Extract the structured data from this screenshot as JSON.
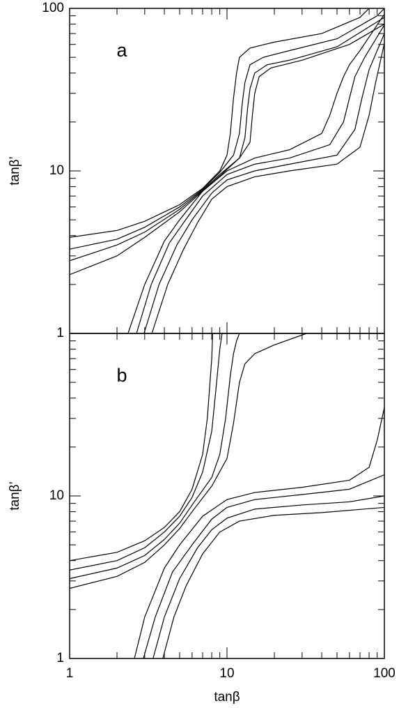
{
  "chart_data": [
    {
      "type": "line",
      "panel_label": "a",
      "y_label": "tanβ’",
      "log_x": true,
      "log_y": true,
      "xlim": [
        1,
        100
      ],
      "ylim": [
        1,
        100
      ],
      "yticks": [
        1,
        10,
        100
      ],
      "series": [
        {
          "color": "#000000",
          "x": [
            1,
            2,
            3,
            5,
            7,
            9,
            10,
            10.5,
            11,
            11.5,
            12,
            14,
            20,
            40,
            70,
            80
          ],
          "values": [
            3.9,
            4.3,
            4.9,
            6.2,
            7.8,
            10,
            12.5,
            17,
            28,
            40,
            50,
            57,
            62,
            70,
            88,
            100
          ]
        },
        {
          "color": "#000000",
          "x": [
            1,
            2,
            3,
            5,
            7,
            9,
            11,
            12,
            12.5,
            13,
            14,
            17,
            25,
            50,
            90,
            100
          ],
          "values": [
            3.3,
            3.8,
            4.5,
            6,
            7.7,
            9.8,
            12.5,
            17,
            26,
            35,
            45,
            50,
            55,
            65,
            90,
            100
          ]
        },
        {
          "color": "#000000",
          "x": [
            1,
            2,
            3,
            5,
            7,
            9,
            12,
            13,
            13.5,
            14,
            15,
            18,
            25,
            50,
            100
          ],
          "values": [
            2.8,
            3.5,
            4.2,
            5.8,
            7.6,
            9.5,
            12,
            16,
            24,
            32,
            40,
            45,
            48,
            58,
            88
          ]
        },
        {
          "color": "#000000",
          "x": [
            1,
            2,
            3,
            5,
            7,
            9,
            12,
            14,
            14.5,
            15,
            16,
            19,
            30,
            60,
            100
          ],
          "values": [
            2.3,
            3,
            3.9,
            5.6,
            7.5,
            9.3,
            12,
            15,
            22,
            30,
            38,
            43,
            48,
            60,
            80
          ]
        },
        {
          "color": "#000000",
          "x": [
            2.35,
            3,
            4,
            5,
            7,
            10,
            15,
            25,
            40,
            45,
            50,
            55,
            60,
            70,
            100
          ],
          "values": [
            1,
            2,
            3.7,
            5,
            7.5,
            10,
            12,
            13.5,
            17,
            22,
            30,
            38,
            45,
            55,
            92
          ]
        },
        {
          "color": "#000000",
          "x": [
            2.66,
            3.3,
            4.3,
            5.3,
            7,
            10,
            15,
            25,
            45,
            55,
            60,
            65,
            75,
            100
          ],
          "values": [
            1,
            2,
            3.6,
            4.8,
            7,
            9.5,
            11,
            12,
            14.5,
            20,
            28,
            38,
            50,
            79
          ]
        },
        {
          "color": "#000000",
          "x": [
            2.97,
            3.7,
            4.8,
            6,
            8,
            10,
            15,
            25,
            50,
            65,
            72,
            80,
            100
          ],
          "values": [
            1,
            2,
            3.5,
            5,
            7.3,
            8.8,
            10,
            11,
            12.5,
            18,
            28,
            42,
            70
          ]
        },
        {
          "color": "#000000",
          "x": [
            3.33,
            4.2,
            5.3,
            6.5,
            8,
            10,
            15,
            25,
            50,
            70,
            80,
            88,
            100
          ],
          "values": [
            1,
            2,
            3.3,
            4.8,
            6.7,
            8,
            9.2,
            10,
            11,
            14,
            22,
            35,
            61
          ]
        }
      ]
    },
    {
      "type": "line",
      "panel_label": "b",
      "x_label": "tanβ",
      "y_label": "tanβ’",
      "log_x": true,
      "log_y": true,
      "xlim": [
        1,
        100
      ],
      "ylim": [
        1,
        100
      ],
      "xticks": [
        1,
        10,
        100
      ],
      "yticks": [
        1,
        10
      ],
      "series": [
        {
          "color": "#000000",
          "x": [
            1,
            2,
            3,
            4,
            5,
            6,
            7,
            7.5,
            8,
            8.1
          ],
          "values": [
            4,
            4.5,
            5.3,
            6.4,
            8,
            11,
            18,
            30,
            70,
            100
          ]
        },
        {
          "color": "#000000",
          "x": [
            1,
            2,
            3,
            4,
            5,
            6,
            7,
            8,
            8.5,
            9,
            9.3
          ],
          "values": [
            3.5,
            4,
            4.8,
            6,
            7.5,
            9.8,
            14,
            25,
            45,
            80,
            100
          ]
        },
        {
          "color": "#000000",
          "x": [
            1,
            2,
            3,
            4,
            5,
            6,
            8,
            9,
            9.8,
            10.5,
            11,
            11.5,
            12
          ],
          "values": [
            3.1,
            3.6,
            4.3,
            5.4,
            6.8,
            8.8,
            13,
            18,
            30,
            55,
            75,
            90,
            100
          ]
        },
        {
          "color": "#000000",
          "x": [
            1,
            2,
            3,
            4,
            5,
            6,
            8,
            10,
            11,
            12,
            13,
            15,
            20,
            32
          ],
          "values": [
            2.7,
            3.2,
            3.9,
            5,
            6.3,
            8,
            11.5,
            17,
            28,
            50,
            65,
            75,
            85,
            100
          ]
        },
        {
          "color": "#000000",
          "x": [
            2.58,
            3,
            4,
            5,
            7,
            10,
            15,
            30,
            60,
            80,
            90,
            100
          ],
          "values": [
            1,
            1.8,
            3.6,
            5,
            7.5,
            9.5,
            10.5,
            11.3,
            12.5,
            15,
            22,
            35
          ]
        },
        {
          "color": "#000000",
          "x": [
            2.94,
            3.5,
            4.5,
            6,
            8,
            10,
            15,
            30,
            60,
            100
          ],
          "values": [
            1,
            1.8,
            3.4,
            5,
            7.2,
            8.5,
            9.5,
            10.2,
            11,
            13.5
          ]
        },
        {
          "color": "#000000",
          "x": [
            3.39,
            4,
            5,
            6.5,
            8,
            10,
            15,
            30,
            60,
            100
          ],
          "values": [
            1,
            1.8,
            3.1,
            4.8,
            6.2,
            7.3,
            8.3,
            8.8,
            9.2,
            10
          ]
        },
        {
          "color": "#000000",
          "x": [
            3.91,
            4.6,
            5.5,
            7,
            9,
            12,
            20,
            40,
            100
          ],
          "values": [
            1,
            1.8,
            2.8,
            4.4,
            6,
            7,
            7.6,
            7.9,
            8.5
          ]
        }
      ]
    }
  ]
}
